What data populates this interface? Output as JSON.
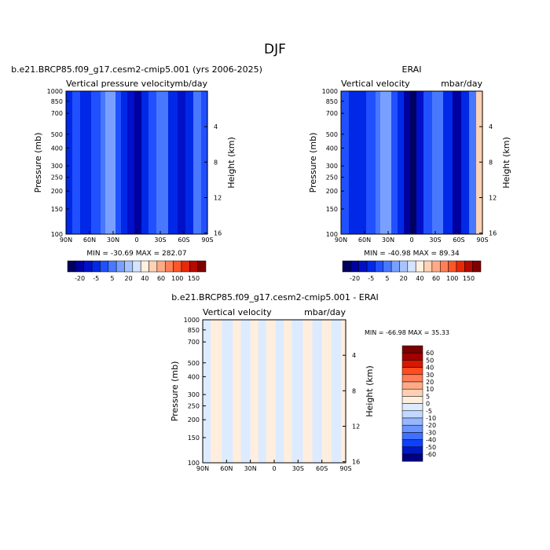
{
  "page_title": "DJF",
  "colors": {
    "panel_scale": [
      "#000060",
      "#0000a0",
      "#0010c8",
      "#0028e6",
      "#2050ff",
      "#4878ff",
      "#7aa0ff",
      "#a8c4ff",
      "#d4e4ff",
      "#fff0e0",
      "#ffd2b4",
      "#ffaa86",
      "#ff8058",
      "#ff5628",
      "#e62a0a",
      "#b40a00",
      "#800000"
    ],
    "diff_scale": [
      "#000080",
      "#0018c0",
      "#1040ff",
      "#4070ff",
      "#6a94ff",
      "#96b6ff",
      "#c2d8ff",
      "#dcebff",
      "#ffeedd",
      "#ffcfb4",
      "#ffaa86",
      "#ff7e58",
      "#ff4c20",
      "#d81800",
      "#a00000",
      "#780000"
    ]
  },
  "chart_data": [
    {
      "type": "heatmap",
      "panel": "model",
      "header": "b.e21.BRCP85.f09_g17.cesm2-cmip5.001 (yrs 2006-2025)",
      "title_left": "Vertical pressure velocity",
      "title_right": "mb/day",
      "ylabel": "Pressure (mb)",
      "ylabel_right": "Height (km)",
      "x_ticks": [
        "90N",
        "60N",
        "30N",
        "0",
        "30S",
        "60S",
        "90S"
      ],
      "y_ticks": [
        1000,
        850,
        700,
        500,
        400,
        300,
        250,
        200,
        150,
        100
      ],
      "height_ticks": [
        4,
        8,
        12,
        16
      ],
      "stats": "MIN = -30.69   MAX = 282.07",
      "colorbar_labels": [
        "-20",
        "-5",
        "5",
        "20",
        "40",
        "60",
        "100",
        "150"
      ],
      "bands": [
        {
          "from": 90,
          "to": 82,
          "v": -11
        },
        {
          "from": 82,
          "to": 72,
          "v": -8
        },
        {
          "from": 72,
          "to": 58,
          "v": -13
        },
        {
          "from": 58,
          "to": 46,
          "v": -8
        },
        {
          "from": 46,
          "to": 40,
          "v": -4
        },
        {
          "from": 40,
          "to": 36,
          "v": 0
        },
        {
          "from": 36,
          "to": 31,
          "v": 4
        },
        {
          "from": 31,
          "to": 27,
          "v": 0
        },
        {
          "from": 27,
          "to": 20,
          "v": -6
        },
        {
          "from": 20,
          "to": 12,
          "v": -12
        },
        {
          "from": 12,
          "to": 3,
          "v": -18
        },
        {
          "from": 3,
          "to": -6,
          "v": -25
        },
        {
          "from": -6,
          "to": -15,
          "v": -15
        },
        {
          "from": -15,
          "to": -25,
          "v": -8
        },
        {
          "from": -25,
          "to": -40,
          "v": -5
        },
        {
          "from": -40,
          "to": -52,
          "v": -12
        },
        {
          "from": -52,
          "to": -62,
          "v": -20
        },
        {
          "from": -62,
          "to": -72,
          "v": -12
        },
        {
          "from": -72,
          "to": -82,
          "v": -5
        },
        {
          "from": -82,
          "to": -90,
          "v": -8
        }
      ]
    },
    {
      "type": "heatmap",
      "panel": "obs",
      "header": "ERAI",
      "title_left": "Vertical velocity",
      "title_right": "mbar/day",
      "ylabel": "Pressure (mb)",
      "ylabel_right": "Height (km)",
      "x_ticks": [
        "90N",
        "60N",
        "30N",
        "0",
        "30S",
        "60S",
        "90S"
      ],
      "y_ticks": [
        1000,
        850,
        700,
        500,
        400,
        300,
        250,
        200,
        150,
        100
      ],
      "height_ticks": [
        4,
        8,
        12,
        16
      ],
      "stats": "MIN = -40.98   MAX =  89.34",
      "colorbar_labels": [
        "-20",
        "-5",
        "5",
        "20",
        "40",
        "60",
        "100",
        "150"
      ],
      "bands": [
        {
          "from": 90,
          "to": 80,
          "v": -9
        },
        {
          "from": 80,
          "to": 70,
          "v": -12
        },
        {
          "from": 70,
          "to": 58,
          "v": -15
        },
        {
          "from": 58,
          "to": 46,
          "v": -9
        },
        {
          "from": 46,
          "to": 40,
          "v": -4
        },
        {
          "from": 40,
          "to": 36,
          "v": 0
        },
        {
          "from": 36,
          "to": 30,
          "v": 4
        },
        {
          "from": 30,
          "to": 26,
          "v": 0
        },
        {
          "from": 26,
          "to": 18,
          "v": -7
        },
        {
          "from": 18,
          "to": 10,
          "v": -14
        },
        {
          "from": 10,
          "to": 2,
          "v": -22
        },
        {
          "from": 2,
          "to": -6,
          "v": -30
        },
        {
          "from": -6,
          "to": -15,
          "v": -16
        },
        {
          "from": -15,
          "to": -26,
          "v": -8
        },
        {
          "from": -26,
          "to": -40,
          "v": -5
        },
        {
          "from": -40,
          "to": -52,
          "v": -13
        },
        {
          "from": -52,
          "to": -63,
          "v": -22
        },
        {
          "from": -63,
          "to": -73,
          "v": -12
        },
        {
          "from": -73,
          "to": -82,
          "v": -4
        },
        {
          "from": -82,
          "to": -90,
          "v": 30
        }
      ]
    },
    {
      "type": "heatmap",
      "panel": "difference",
      "header": "b.e21.BRCP85.f09_g17.cesm2-cmip5.001 - ERAI",
      "title_left": "Vertical velocity",
      "title_right": "mbar/day",
      "ylabel": "Pressure (mb)",
      "ylabel_right": "Height (km)",
      "x_ticks": [
        "90N",
        "60N",
        "30N",
        "0",
        "30S",
        "60S",
        "90S"
      ],
      "y_ticks": [
        1000,
        850,
        700,
        500,
        400,
        300,
        250,
        200,
        150,
        100
      ],
      "height_ticks": [
        4,
        8,
        12,
        16
      ],
      "stats": "MIN = -66.98   MAX =  35.33",
      "colorbar_labels": [
        "60",
        "50",
        "40",
        "30",
        "20",
        "10",
        "5",
        "0",
        "-5",
        "-10",
        "-20",
        "-30",
        "-40",
        "-50",
        "-60"
      ],
      "bands": [
        {
          "from": 90,
          "to": 80,
          "v": -3
        },
        {
          "from": 80,
          "to": 66,
          "v": 3
        },
        {
          "from": 66,
          "to": 52,
          "v": -3
        },
        {
          "from": 52,
          "to": 42,
          "v": 3
        },
        {
          "from": 42,
          "to": 30,
          "v": -3
        },
        {
          "from": 30,
          "to": 20,
          "v": 3
        },
        {
          "from": 20,
          "to": 10,
          "v": -3
        },
        {
          "from": 10,
          "to": -2,
          "v": 3
        },
        {
          "from": -2,
          "to": -12,
          "v": -3
        },
        {
          "from": -12,
          "to": -22,
          "v": 3
        },
        {
          "from": -22,
          "to": -36,
          "v": -3
        },
        {
          "from": -36,
          "to": -48,
          "v": 3
        },
        {
          "from": -48,
          "to": -60,
          "v": -3
        },
        {
          "from": -60,
          "to": -72,
          "v": 3
        },
        {
          "from": -72,
          "to": -84,
          "v": -3
        },
        {
          "from": -84,
          "to": -90,
          "v": 3
        }
      ]
    }
  ]
}
